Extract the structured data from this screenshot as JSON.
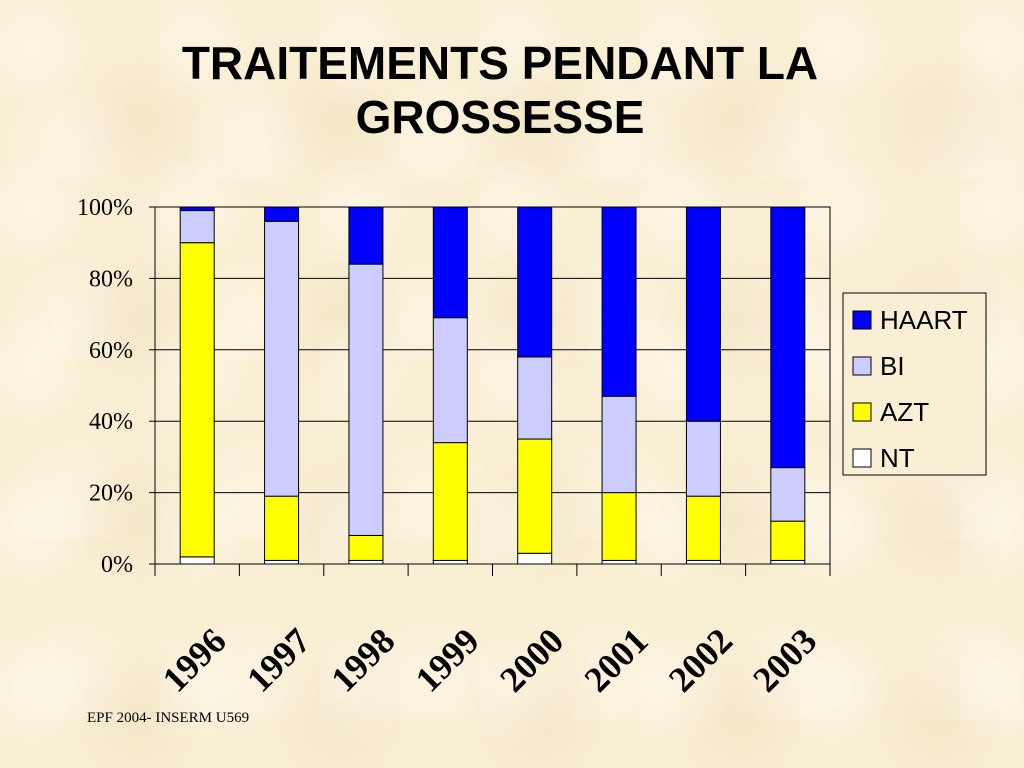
{
  "slide": {
    "title_line1": "TRAITEMENTS PENDANT LA",
    "title_line2": "GROSSESSE",
    "footer": "EPF 2004- INSERM U569"
  },
  "colors": {
    "HAART": "#0000ff",
    "BI": "#ccccff",
    "AZT": "#ffff00",
    "NT": "#ffffff",
    "background": "#f9efd4"
  },
  "chart_data": {
    "type": "bar",
    "stacked": true,
    "categories": [
      "1996",
      "1997",
      "1998",
      "1999",
      "2000",
      "2001",
      "2002",
      "2003"
    ],
    "series": [
      {
        "name": "NT",
        "values": [
          2,
          1,
          1,
          1,
          3,
          1,
          1,
          1
        ]
      },
      {
        "name": "AZT",
        "values": [
          88,
          18,
          7,
          33,
          32,
          19,
          18,
          11
        ]
      },
      {
        "name": "BI",
        "values": [
          9,
          77,
          76,
          35,
          23,
          27,
          21,
          15
        ]
      },
      {
        "name": "HAART",
        "values": [
          1,
          4,
          16,
          31,
          42,
          53,
          60,
          73
        ]
      }
    ],
    "ylim": [
      0,
      100
    ],
    "yticks": [
      "0%",
      "20%",
      "40%",
      "60%",
      "80%",
      "100%"
    ],
    "legend_order": [
      "HAART",
      "BI",
      "AZT",
      "NT"
    ],
    "legend_position": "right",
    "grid": true
  }
}
